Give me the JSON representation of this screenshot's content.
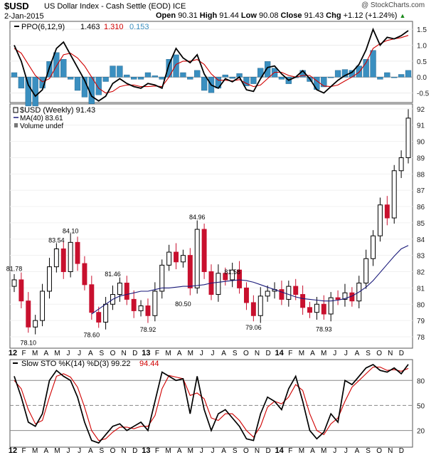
{
  "header": {
    "symbol": "$USD",
    "name": "US Dollar Index - Cash Settle (EOD) ICE",
    "date": "2-Jan-2015",
    "open_label": "Open",
    "open": "90.31",
    "high_label": "High",
    "high": "91.44",
    "low_label": "Low",
    "low": "90.08",
    "close_label": "Close",
    "close": "91.43",
    "chg_label": "Chg",
    "chg": "+1.12 (+1.24%)",
    "chg_arrow": "▲",
    "logo": "@ StockCharts.com"
  },
  "chart_data": [
    {
      "type": "line",
      "panel": "ppo",
      "legend": {
        "label": "PPO(6,12,9)",
        "ppo": "1.463",
        "signal": "1.310",
        "hist": "0.153"
      },
      "colors": {
        "ppo": "#000000",
        "signal": "#d00000",
        "hist": "#3a8fc0"
      },
      "ylim": [
        -0.8,
        1.75
      ],
      "yticks": [
        "1.5",
        "1.0",
        "0.5",
        "0.0",
        "-0.5"
      ],
      "ytick_values": [
        1.5,
        1.0,
        0.5,
        0.0,
        -0.5
      ],
      "ppo_line": [
        1.0,
        0.5,
        -0.25,
        -0.6,
        -0.4,
        0.3,
        0.9,
        1.1,
        0.7,
        0.3,
        -0.1,
        -0.6,
        -0.75,
        -0.6,
        -0.2,
        -0.05,
        -0.2,
        -0.3,
        -0.35,
        -0.2,
        -0.25,
        -0.35,
        0.4,
        0.9,
        0.6,
        0.45,
        0.7,
        0.1,
        -0.25,
        -0.35,
        -0.05,
        -0.15,
        0.0,
        -0.4,
        -0.45,
        -0.05,
        0.3,
        0.35,
        0.1,
        -0.1,
        0.0,
        0.2,
        -0.05,
        -0.4,
        -0.5,
        -0.3,
        -0.1,
        0.05,
        0.15,
        0.4,
        0.85,
        1.5,
        1.0,
        1.25,
        1.2,
        1.3,
        1.46
      ],
      "signal_line": [
        0.9,
        0.75,
        0.4,
        0.05,
        -0.15,
        -0.05,
        0.35,
        0.7,
        0.75,
        0.6,
        0.35,
        0.0,
        -0.35,
        -0.5,
        -0.45,
        -0.3,
        -0.25,
        -0.25,
        -0.3,
        -0.3,
        -0.28,
        -0.3,
        0.0,
        0.4,
        0.5,
        0.5,
        0.55,
        0.4,
        0.1,
        -0.1,
        -0.1,
        -0.12,
        -0.08,
        -0.2,
        -0.3,
        -0.25,
        -0.05,
        0.15,
        0.15,
        0.05,
        0.0,
        0.05,
        0.05,
        -0.12,
        -0.28,
        -0.3,
        -0.25,
        -0.12,
        0.0,
        0.15,
        0.45,
        0.9,
        1.05,
        1.15,
        1.2,
        1.24,
        1.31
      ]
    },
    {
      "type": "candlestick",
      "panel": "price",
      "legend": {
        "symbol": "$USD (Weekly) 91.43",
        "ma": "MA(40) 83.61",
        "volume": "Volume undef"
      },
      "colors": {
        "up": "#000000",
        "down": "#c8102e",
        "ma": "#1a1a7a"
      },
      "ylim": [
        77.3,
        92.3
      ],
      "yticks": [
        "92",
        "91",
        "90",
        "89",
        "88",
        "87",
        "86",
        "85",
        "84",
        "83",
        "82",
        "81",
        "80",
        "79",
        "78"
      ],
      "ytick_values": [
        92,
        91,
        90,
        89,
        88,
        87,
        86,
        85,
        84,
        83,
        82,
        81,
        80,
        79,
        78
      ],
      "closes": [
        81.5,
        80.2,
        78.6,
        79.0,
        80.8,
        82.3,
        83.4,
        82.0,
        83.8,
        82.5,
        81.2,
        79.5,
        78.9,
        80.0,
        80.6,
        81.3,
        80.3,
        79.6,
        79.9,
        79.3,
        80.8,
        82.4,
        83.2,
        82.6,
        83.0,
        81.0,
        84.6,
        82.0,
        80.6,
        81.9,
        81.5,
        82.1,
        81.0,
        80.1,
        79.3,
        80.5,
        80.8,
        80.9,
        80.3,
        81.1,
        80.6,
        79.8,
        79.5,
        80.0,
        79.4,
        80.4,
        80.3,
        80.7,
        80.2,
        81.3,
        82.8,
        84.2,
        86.1,
        85.3,
        88.2,
        89.0,
        91.43
      ],
      "ma_line": [
        null,
        null,
        null,
        null,
        null,
        null,
        null,
        null,
        null,
        null,
        null,
        79.4,
        79.7,
        80.0,
        80.3,
        80.5,
        80.6,
        80.7,
        80.8,
        80.8,
        80.9,
        81.0,
        81.0,
        81.05,
        81.1,
        81.1,
        81.15,
        81.2,
        81.3,
        81.35,
        81.4,
        81.45,
        81.5,
        81.45,
        81.35,
        81.2,
        81.05,
        80.9,
        80.75,
        80.6,
        80.45,
        80.35,
        80.3,
        80.25,
        80.2,
        80.2,
        80.25,
        80.35,
        80.5,
        80.75,
        81.05,
        81.45,
        81.95,
        82.45,
        82.95,
        83.4,
        83.61
      ],
      "annotations": [
        {
          "text": "81.78",
          "i": 0,
          "y": 81.78,
          "pos": "above"
        },
        {
          "text": "78.10",
          "i": 2,
          "y": 78.1,
          "pos": "below"
        },
        {
          "text": "83.54",
          "i": 6,
          "y": 83.54,
          "pos": "above"
        },
        {
          "text": "84.10",
          "i": 8,
          "y": 84.1,
          "pos": "above"
        },
        {
          "text": "78.60",
          "i": 11,
          "y": 78.6,
          "pos": "below"
        },
        {
          "text": "81.46",
          "i": 14,
          "y": 81.46,
          "pos": "above"
        },
        {
          "text": "78.92",
          "i": 19,
          "y": 78.92,
          "pos": "below"
        },
        {
          "text": "84.96",
          "i": 26,
          "y": 84.96,
          "pos": "above"
        },
        {
          "text": "80.50",
          "i": 24,
          "y": 80.5,
          "pos": "below"
        },
        {
          "text": "81.58",
          "i": 31,
          "y": 81.58,
          "pos": "above"
        },
        {
          "text": "79.06",
          "i": 34,
          "y": 79.06,
          "pos": "below"
        },
        {
          "text": "78.93",
          "i": 44,
          "y": 78.93,
          "pos": "below"
        }
      ]
    },
    {
      "type": "line",
      "panel": "stochastic",
      "legend": {
        "label": "Slow STO %K(14) %D(3)",
        "k": "99.22",
        "d": "94.44"
      },
      "colors": {
        "k": "#000000",
        "d": "#d00000"
      },
      "ylim": [
        0,
        105
      ],
      "yticks": [
        "80",
        "50",
        "20"
      ],
      "ytick_values": [
        80,
        50,
        20
      ],
      "k_line": [
        85,
        60,
        30,
        25,
        40,
        80,
        92,
        85,
        80,
        60,
        30,
        8,
        5,
        15,
        25,
        28,
        20,
        25,
        30,
        20,
        55,
        90,
        85,
        80,
        82,
        40,
        85,
        45,
        20,
        40,
        45,
        35,
        25,
        10,
        8,
        40,
        60,
        55,
        45,
        70,
        85,
        55,
        20,
        10,
        18,
        40,
        30,
        80,
        75,
        85,
        95,
        99,
        92,
        90,
        95,
        88,
        99.22
      ],
      "d_line": [
        80,
        70,
        45,
        28,
        32,
        60,
        85,
        88,
        84,
        72,
        48,
        20,
        8,
        10,
        18,
        24,
        24,
        22,
        25,
        25,
        38,
        70,
        86,
        84,
        82,
        62,
        65,
        58,
        35,
        32,
        40,
        40,
        32,
        20,
        12,
        25,
        48,
        55,
        52,
        60,
        75,
        68,
        40,
        20,
        15,
        28,
        35,
        55,
        72,
        80,
        88,
        96,
        96,
        92,
        93,
        91,
        94.44
      ]
    }
  ],
  "axis_labels": {
    "months": [
      "12",
      "F",
      "M",
      "A",
      "M",
      "J",
      "J",
      "A",
      "S",
      "O",
      "N",
      "D",
      "13",
      "F",
      "M",
      "A",
      "M",
      "J",
      "J",
      "A",
      "S",
      "O",
      "N",
      "D",
      "14",
      "F",
      "M",
      "A",
      "M",
      "J",
      "J",
      "A",
      "S",
      "O",
      "N",
      "D"
    ]
  }
}
